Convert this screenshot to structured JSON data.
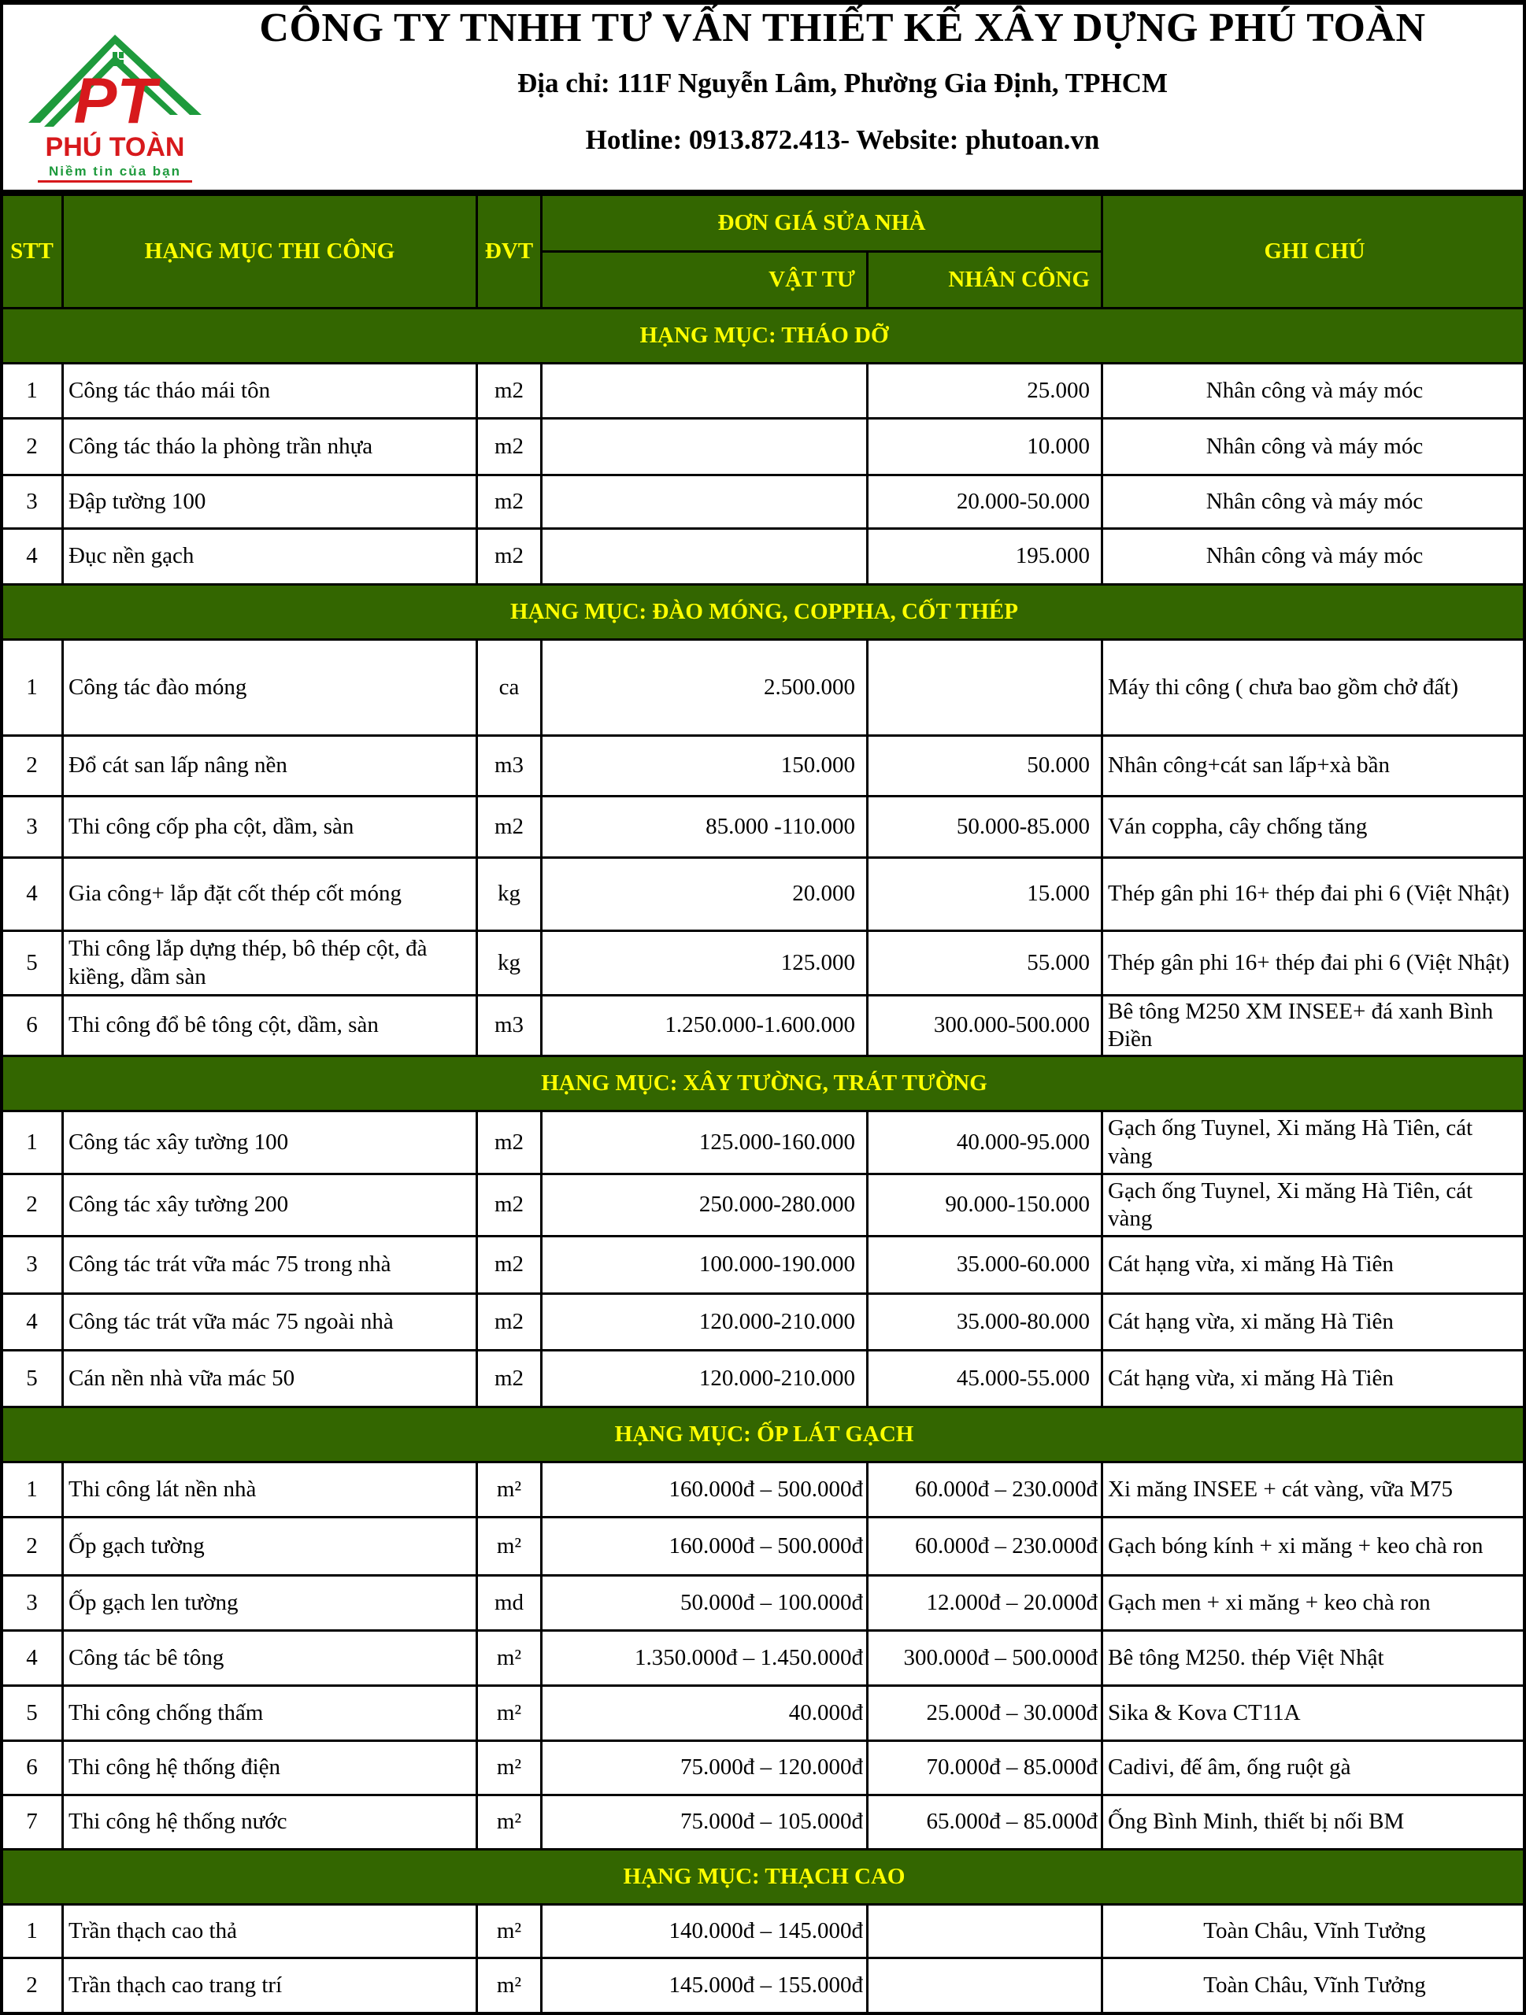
{
  "company": {
    "name": "CÔNG TY TNHH TƯ VẤN THIẾT KẾ XÂY DỰNG PHÚ TOÀN",
    "address": "Địa chỉ: 111F Nguyễn Lâm, Phường Gia Định, TPHCM",
    "contact": "Hotline: 0913.872.413- Website: phutoan.vn",
    "logo": {
      "letters": "PT",
      "brand": "PHÚ TOÀN",
      "slogan": "Niềm tin của bạn"
    }
  },
  "colors": {
    "header_bg": "#336600",
    "header_text": "#ffff00",
    "logo_red": "#d7191c",
    "logo_green": "#1e9a3c"
  },
  "table": {
    "headers": {
      "stt": "STT",
      "item": "HẠNG MỤC THI CÔNG",
      "unit": "ĐVT",
      "price_group": "ĐƠN GIÁ SỬA NHÀ",
      "material": "VẬT TƯ",
      "labor": "NHÂN CÔNG",
      "note": "GHI CHÚ"
    },
    "sections": [
      {
        "title": "HẠNG MỤC: THÁO DỠ",
        "rows": [
          {
            "stt": "1",
            "item": "Công tác tháo mái tôn",
            "unit": "m2",
            "material": "",
            "labor": "25.000",
            "note": "Nhân công và máy móc"
          },
          {
            "stt": "2",
            "item": "Công tác tháo la phòng trần nhựa",
            "unit": "m2",
            "material": "",
            "labor": "10.000",
            "note": "Nhân công và máy móc"
          },
          {
            "stt": "3",
            "item": "Đập tường 100",
            "unit": "m2",
            "material": "",
            "labor": "20.000-50.000",
            "note": "Nhân công và máy móc"
          },
          {
            "stt": "4",
            "item": "Đục nền gạch",
            "unit": "m2",
            "material": "",
            "labor": "195.000",
            "note": "Nhân công và máy móc"
          }
        ]
      },
      {
        "title": "HẠNG MỤC: ĐÀO MÓNG, COPPHA, CỐT THÉP",
        "rows": [
          {
            "stt": "1",
            "item": "Công tác đào móng",
            "unit": "ca",
            "material": "2.500.000",
            "labor": "",
            "note": "Máy thi công ( chưa bao gồm chở đất)"
          },
          {
            "stt": "2",
            "item": "Đổ cát san lấp nâng nền",
            "unit": "m3",
            "material": "150.000",
            "labor": "50.000",
            "note": "Nhân công+cát san lấp+xà bần"
          },
          {
            "stt": "3",
            "item": "Thi công cốp pha cột, dầm, sàn",
            "unit": "m2",
            "material": "85.000 -110.000",
            "labor": "50.000-85.000",
            "note": "Ván coppha, cây chống tăng"
          },
          {
            "stt": "4",
            "item": "Gia công+ lắp đặt cốt thép cốt móng",
            "unit": "kg",
            "material": "20.000",
            "labor": "15.000",
            "note": "Thép gân phi 16+ thép đai phi 6  (Việt Nhật)"
          },
          {
            "stt": "5",
            "item": "Thi công lắp dựng thép, bô thép cột, đà kiềng, dầm sàn",
            "unit": "kg",
            "material": "125.000",
            "labor": "55.000",
            "note": "Thép gân phi 16+ thép đai phi 6  (Việt Nhật)"
          },
          {
            "stt": "6",
            "item": "Thi công đổ bê tông cột, dầm, sàn",
            "unit": "m3",
            "material": "1.250.000-1.600.000",
            "labor": "300.000-500.000",
            "note": "Bê tông M250 XM INSEE+ đá xanh Bình Điền"
          }
        ]
      },
      {
        "title": "HẠNG MỤC: XÂY TƯỜNG, TRÁT TƯỜNG",
        "rows": [
          {
            "stt": "1",
            "item": "Công tác xây tường 100",
            "unit": "m2",
            "material": "125.000-160.000",
            "labor": "40.000-95.000",
            "note": "Gạch ống Tuynel, Xi măng Hà Tiên, cát vàng"
          },
          {
            "stt": "2",
            "item": "Công tác xây tường 200",
            "unit": "m2",
            "material": "250.000-280.000",
            "labor": "90.000-150.000",
            "note": "Gạch ống Tuynel, Xi măng Hà Tiên, cát vàng"
          },
          {
            "stt": "3",
            "item": "Công tác trát vữa mác 75 trong nhà",
            "unit": "m2",
            "material": "100.000-190.000",
            "labor": "35.000-60.000",
            "note": "Cát hạng vừa, xi măng Hà Tiên"
          },
          {
            "stt": "4",
            "item": "Công tác trát vữa mác 75 ngoài nhà",
            "unit": "m2",
            "material": "120.000-210.000",
            "labor": "35.000-80.000",
            "note": "Cát hạng vừa, xi măng Hà Tiên"
          },
          {
            "stt": "5",
            "item": "Cán nền nhà vữa mác 50",
            "unit": "m2",
            "material": "120.000-210.000",
            "labor": "45.000-55.000",
            "note": "Cát hạng vừa, xi măng Hà Tiên"
          }
        ]
      },
      {
        "title": "HẠNG MỤC: ỐP LÁT GẠCH",
        "rows": [
          {
            "stt": "1",
            "item": "Thi công lát nền nhà",
            "unit": "m²",
            "material": "160.000đ –  500.000đ",
            "labor": "60.000đ –  230.000đ",
            "note": "Xi măng INSEE + cát vàng, vữa M75"
          },
          {
            "stt": "2",
            "item": "Ốp gạch tường",
            "unit": "m²",
            "material": "160.000đ –  500.000đ",
            "labor": "60.000đ –  230.000đ",
            "note": "Gạch bóng kính + xi măng + keo chà ron"
          },
          {
            "stt": "3",
            "item": "Ốp gạch len tường",
            "unit": "md",
            "material": "50.000đ – 100.000đ",
            "labor": "12.000đ – 20.000đ",
            "note": "Gạch men + xi măng + keo chà ron"
          },
          {
            "stt": "4",
            "item": "Công tác bê tông",
            "unit": "m²",
            "material": "1.350.000đ – 1.450.000đ",
            "labor": "300.000đ – 500.000đ",
            "note": "Bê tông M250. thép Việt Nhật"
          },
          {
            "stt": "5",
            "item": "Thi công chống thấm",
            "unit": "m²",
            "material": "40.000đ",
            "labor": "25.000đ – 30.000đ",
            "note": "Sika & Kova CT11A"
          },
          {
            "stt": "6",
            "item": "Thi công hệ thống điện",
            "unit": "m²",
            "material": "75.000đ – 120.000đ",
            "labor": "70.000đ – 85.000đ",
            "note": "Cadivi, đế âm, ống ruột gà"
          },
          {
            "stt": "7",
            "item": "Thi công hệ thống nước",
            "unit": "m²",
            "material": "75.000đ – 105.000đ",
            "labor": "65.000đ – 85.000đ",
            "note": "Ống Bình Minh, thiết bị nối BM"
          }
        ]
      },
      {
        "title": "HẠNG MỤC: THẠCH CAO",
        "rows": [
          {
            "stt": "1",
            "item": "Trần thạch cao thả",
            "unit": "m²",
            "material": "140.000đ – 145.000đ",
            "labor": "",
            "note": "Toàn Châu, Vĩnh Tưởng"
          },
          {
            "stt": "2",
            "item": "Trần thạch cao trang trí",
            "unit": "m²",
            "material": "145.000đ – 155.000đ",
            "labor": "",
            "note": "Toàn Châu, Vĩnh Tưởng"
          }
        ]
      }
    ]
  }
}
